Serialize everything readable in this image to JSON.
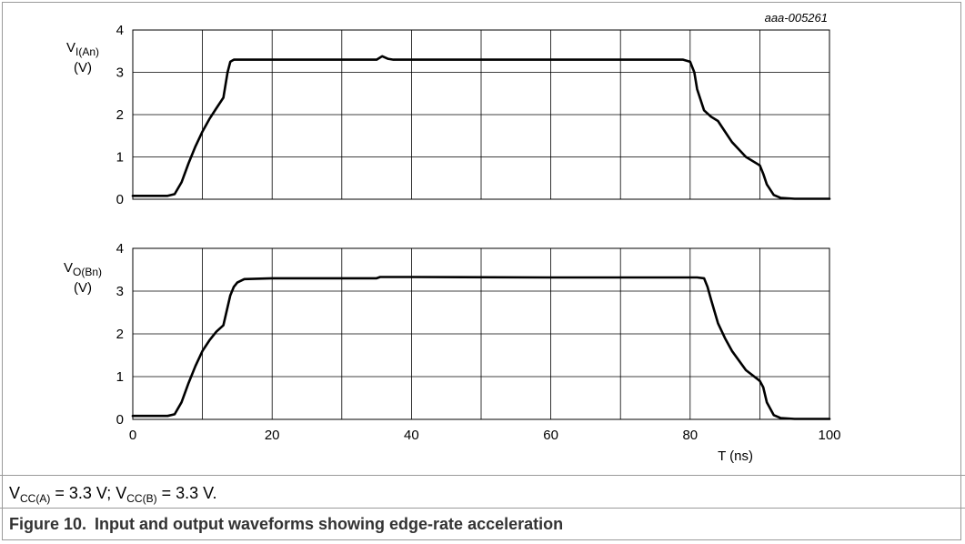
{
  "figure": {
    "label": "Figure 10.",
    "title": "Input and output waveforms showing edge-rate acceleration",
    "code": "aaa-005261",
    "conditions": {
      "a_var": "V",
      "a_sub": "CC(A)",
      "a_val": " = 3.3 V; ",
      "b_var": "V",
      "b_sub": "CC(B)",
      "b_val": " = 3.3 V."
    }
  },
  "panels": {
    "top": {
      "ylabel_var": "V",
      "ylabel_sub": "I(An)",
      "ylabel_unit": "(V)"
    },
    "bottom": {
      "ylabel_var": "V",
      "ylabel_sub": "O(Bn)",
      "ylabel_unit": "(V)"
    }
  },
  "chart_data": [
    {
      "type": "line",
      "ylabel": "VI(An) (V)",
      "xlim": [
        0,
        100
      ],
      "ylim": [
        0,
        4
      ],
      "x_ticks": [
        0,
        20,
        40,
        60,
        80,
        100
      ],
      "y_ticks": [
        0,
        1,
        2,
        3,
        4
      ],
      "grid": true,
      "series": [
        {
          "x": [
            0,
            5,
            6,
            7,
            8,
            9,
            10,
            11,
            12,
            13,
            13.6,
            14,
            14.5,
            20,
            35,
            35.8,
            36.6,
            37.4,
            40,
            60,
            79,
            80,
            80.6,
            81,
            82,
            83,
            84,
            85,
            86,
            88,
            90,
            90.5,
            91,
            92,
            93,
            95,
            100
          ],
          "y": [
            0.08,
            0.08,
            0.12,
            0.4,
            0.85,
            1.25,
            1.6,
            1.9,
            2.15,
            2.4,
            3.0,
            3.25,
            3.3,
            3.3,
            3.3,
            3.38,
            3.32,
            3.3,
            3.3,
            3.3,
            3.3,
            3.25,
            3.0,
            2.6,
            2.1,
            1.95,
            1.85,
            1.6,
            1.35,
            1.0,
            0.8,
            0.6,
            0.35,
            0.1,
            0.03,
            0.01,
            0.01
          ]
        }
      ]
    },
    {
      "type": "line",
      "ylabel": "VO(Bn) (V)",
      "xlabel": "T (ns)",
      "xlim": [
        0,
        100
      ],
      "ylim": [
        0,
        4
      ],
      "x_ticks": [
        0,
        20,
        40,
        60,
        80,
        100
      ],
      "x_tick_labels": [
        "0",
        "20",
        "40",
        "60",
        "80",
        "100"
      ],
      "y_ticks": [
        0,
        1,
        2,
        3,
        4
      ],
      "grid": true,
      "series": [
        {
          "x": [
            0,
            5,
            6,
            7,
            8,
            9,
            10,
            11,
            12,
            13,
            14,
            14.5,
            15,
            16,
            20,
            35,
            35.5,
            40,
            60,
            81,
            82,
            82.5,
            83,
            84,
            85,
            86,
            88,
            90,
            90.5,
            91,
            92,
            93,
            95,
            100
          ],
          "y": [
            0.08,
            0.08,
            0.12,
            0.4,
            0.85,
            1.25,
            1.6,
            1.85,
            2.05,
            2.2,
            2.9,
            3.1,
            3.2,
            3.28,
            3.3,
            3.3,
            3.33,
            3.33,
            3.32,
            3.32,
            3.3,
            3.1,
            2.8,
            2.25,
            1.9,
            1.6,
            1.15,
            0.9,
            0.75,
            0.4,
            0.1,
            0.03,
            0.01,
            0.01
          ]
        }
      ]
    }
  ]
}
